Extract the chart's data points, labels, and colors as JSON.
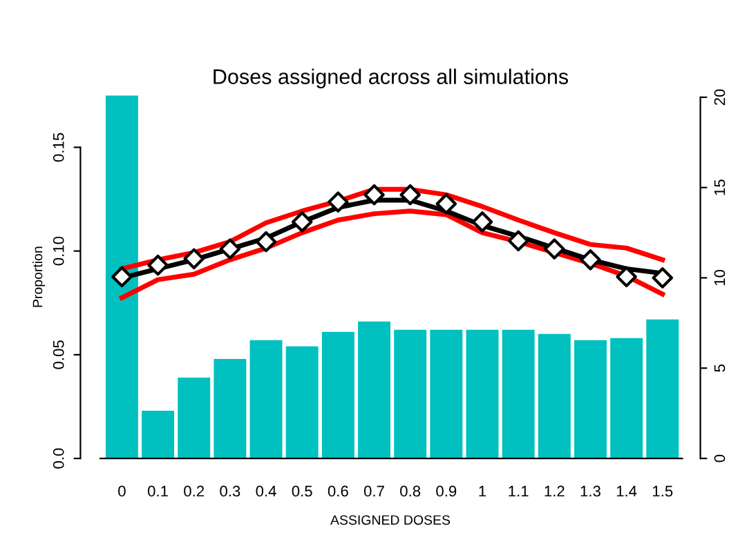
{
  "chart_data": {
    "type": "bar",
    "title": "Doses assigned across all simulations",
    "xlabel": "ASSIGNED DOSES",
    "ylabel": "Proportion",
    "categories": [
      "0",
      "0.1",
      "0.2",
      "0.3",
      "0.4",
      "0.5",
      "0.6",
      "0.7",
      "0.8",
      "0.9",
      "1",
      "1.1",
      "1.2",
      "1.3",
      "1.4",
      "1.5"
    ],
    "ylim": [
      0,
      0.175
    ],
    "yticks": [
      {
        "value": 0,
        "label": "0.0"
      },
      0.05,
      {
        "value": 0.1,
        "label": "0.10"
      },
      0.15
    ],
    "y2lim": [
      0,
      20.1
    ],
    "y2ticks": [
      0,
      5,
      10,
      15,
      20
    ],
    "grid": false,
    "legend": false,
    "series": [
      {
        "color": "#00c0c0",
        "values": [
          0.175,
          0.023,
          0.039,
          0.048,
          0.057,
          0.054,
          0.061,
          0.066,
          0.062,
          0.062,
          0.062,
          0.062,
          0.06,
          0.057,
          0.058,
          0.067
        ]
      },
      {
        "type": "line",
        "axis": "y2",
        "color": "#ff0000",
        "marker": "none",
        "line_style": "solid",
        "values": [
          10.5,
          11.0,
          11.4,
          12.0,
          13.05,
          13.7,
          14.25,
          14.9,
          14.9,
          14.6,
          13.95,
          13.2,
          12.5,
          11.85,
          11.65,
          11.0
        ]
      },
      {
        "type": "line",
        "axis": "y2",
        "color": "#ff0000",
        "marker": "none",
        "line_style": "solid",
        "values": [
          8.9,
          9.9,
          10.2,
          11.0,
          11.65,
          12.5,
          13.2,
          13.55,
          13.7,
          13.5,
          12.5,
          12.0,
          11.4,
          10.8,
          10.1,
          9.1
        ]
      },
      {
        "type": "line",
        "axis": "y2",
        "color": "#000000",
        "marker": "none",
        "line_style": "solid",
        "values": [
          10.0,
          10.5,
          11.0,
          11.6,
          12.2,
          13.1,
          13.9,
          14.3,
          14.3,
          13.7,
          12.9,
          12.3,
          11.65,
          11.0,
          10.5,
          10.25
        ]
      },
      {
        "type": "scatter",
        "axis": "y2",
        "color": "#000000",
        "marker": "diamond",
        "values": [
          10.06,
          10.7,
          11.06,
          11.6,
          12.0,
          13.1,
          14.2,
          14.6,
          14.6,
          14.1,
          13.1,
          12.05,
          11.6,
          11.0,
          10.06,
          10.0
        ]
      }
    ]
  }
}
